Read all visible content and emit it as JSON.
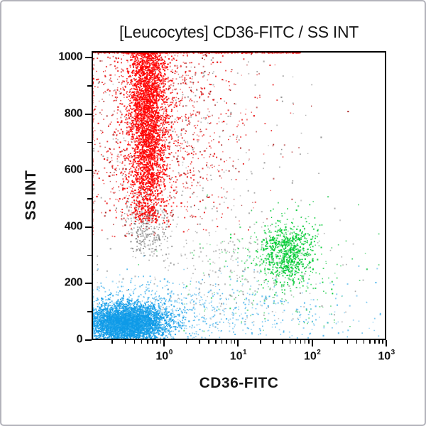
{
  "frame": {
    "background": "#ffffff",
    "border_color": "#b3b3bb"
  },
  "chart_data": {
    "type": "scatter",
    "title": "[Leucocytes] CD36-FITC / SS INT",
    "xlabel": "CD36-FITC",
    "ylabel": "SS INT",
    "grid": false,
    "legend": false,
    "text_color": "#161616",
    "axis_color": "#000000",
    "x_axis": {
      "scale": "log",
      "min": 0.105,
      "max": 1000,
      "tick_base": "10",
      "tick_exponents": [
        0,
        1,
        2,
        3
      ],
      "minor_mantissas": [
        2,
        3,
        4,
        5,
        6,
        7,
        8,
        9
      ],
      "minor_decades": [
        -1,
        0,
        1,
        2
      ]
    },
    "y_axis": {
      "scale": "linear",
      "min": 0,
      "max": 1023,
      "major_ticks": [
        0,
        200,
        400,
        600,
        800,
        1000
      ],
      "minor_ticks": [
        100,
        300,
        500,
        700,
        900
      ]
    },
    "seed": 42,
    "populations": [
      {
        "name": "gray_upper_scatter",
        "color": "#4f4f4f",
        "count": 260,
        "alpha": [
          0.3,
          0.6
        ],
        "x": {
          "type": "lognormal",
          "log10_mean": 0.35,
          "log10_sigma": 0.8,
          "clamp": [
            -0.95,
            2.9
          ]
        },
        "y": {
          "type": "normal",
          "mean": 700,
          "sigma": 220,
          "skip_below": 380,
          "skip_above": 1018
        }
      },
      {
        "name": "gray_debris_below_red_band",
        "color": "#585858",
        "count": 330,
        "alpha": [
          0.35,
          0.7
        ],
        "x": {
          "type": "lognormal",
          "log10_mean": -0.23,
          "log10_sigma": 0.15,
          "clamp": [
            -0.97,
            0.6
          ]
        },
        "y": {
          "type": "normal",
          "mean": 400,
          "sigma": 65,
          "skip_below": 280,
          "skip_above": 545
        }
      },
      {
        "name": "gray_mid_scatter",
        "color": "#616161",
        "count": 340,
        "alpha": [
          0.3,
          0.6
        ],
        "x": {
          "type": "lognormal",
          "log10_mean": 0.85,
          "log10_sigma": 0.8,
          "clamp": [
            -0.9,
            2.9
          ]
        },
        "y": {
          "type": "normal",
          "mean": 230,
          "sigma": 125,
          "skip_below": 40,
          "skip_above": 540
        }
      },
      {
        "name": "red_wide_scatter",
        "color": "#e60000",
        "count": 1400,
        "alpha": [
          0.45,
          0.95
        ],
        "x": {
          "type": "lognormal",
          "log10_mean": -0.1,
          "log10_sigma": 0.6,
          "clamp": [
            -0.97,
            2.95
          ]
        },
        "y": {
          "type": "normal",
          "mean": 790,
          "sigma": 265,
          "skip_below": 365,
          "pile_max": true
        }
      },
      {
        "name": "red_dark_speckle",
        "color": "#9b0000",
        "count": 430,
        "alpha": [
          0.45,
          0.9
        ],
        "x": {
          "type": "lognormal",
          "log10_mean": -0.05,
          "log10_sigma": 0.75,
          "clamp": [
            -0.97,
            2.9
          ]
        },
        "y": {
          "type": "normal",
          "mean": 770,
          "sigma": 280,
          "skip_below": 360,
          "skip_above": 1020
        }
      },
      {
        "name": "red_granulocyte_band",
        "color": "#ff0000",
        "count": 4400,
        "alpha": [
          0.75,
          1
        ],
        "x": {
          "type": "lognormal",
          "log10_mean": -0.22,
          "log10_sigma": 0.13,
          "clamp": [
            -0.97,
            1.2
          ]
        },
        "y": {
          "type": "normal",
          "mean": 820,
          "sigma": 260,
          "skip_below": 415,
          "pile_max": true
        }
      },
      {
        "name": "red_top_pileup_line",
        "color": "#ff0000",
        "count": 650,
        "alpha": [
          0.7,
          1
        ],
        "x": {
          "type": "loguniform",
          "log10_min": -0.95,
          "log10_max": 1.86
        },
        "y": {
          "type": "topline",
          "max": 1023,
          "jitter": 7
        }
      },
      {
        "name": "green_monocyte_cluster",
        "color": "#00cb32",
        "count": 780,
        "alpha": [
          0.65,
          1
        ],
        "x": {
          "type": "lognormal",
          "log10_mean": 1.66,
          "log10_sigma": 0.19,
          "clamp": [
            0.9,
            2.4
          ]
        },
        "y": {
          "type": "normal",
          "mean": 308,
          "sigma": 55,
          "skip_below": 130,
          "skip_above": 500
        }
      },
      {
        "name": "green_sparse_scatter",
        "color": "#1ec74b",
        "count": 230,
        "alpha": [
          0.45,
          0.85
        ],
        "x": {
          "type": "lognormal",
          "log10_mean": 1.5,
          "log10_sigma": 0.55,
          "clamp": [
            -0.6,
            2.9
          ]
        },
        "y": {
          "type": "normal",
          "mean": 235,
          "sigma": 125,
          "skip_below": 25,
          "skip_above": 540
        }
      },
      {
        "name": "blue_lymphocyte_core",
        "color": "#0f9be8",
        "count": 4000,
        "alpha": [
          0.8,
          1
        ],
        "x": {
          "type": "lognormal",
          "log10_mean": -0.5,
          "log10_sigma": 0.26,
          "clamp": [
            -0.972,
            0.55
          ]
        },
        "y": {
          "type": "normal",
          "mean": 60,
          "sigma": 33,
          "skip_below": 3,
          "skip_above": 215
        }
      },
      {
        "name": "blue_halo",
        "color": "#3aaeeb",
        "count": 800,
        "alpha": [
          0.45,
          0.85
        ],
        "x": {
          "type": "lognormal",
          "log10_mean": -0.33,
          "log10_sigma": 0.5,
          "clamp": [
            -0.972,
            1.3
          ]
        },
        "y": {
          "type": "normal",
          "mean": 88,
          "sigma": 62,
          "skip_below": 2,
          "skip_above": 290
        }
      },
      {
        "name": "blue_bottom_scatter",
        "color": "#2ea7e8",
        "count": 430,
        "alpha": [
          0.4,
          0.8
        ],
        "x": {
          "type": "lognormal",
          "log10_mean": 1.05,
          "log10_sigma": 0.9,
          "clamp": [
            -0.9,
            2.92
          ]
        },
        "y": {
          "type": "normal",
          "mean": 85,
          "sigma": 70,
          "skip_below": 2,
          "skip_above": 310
        }
      }
    ]
  }
}
